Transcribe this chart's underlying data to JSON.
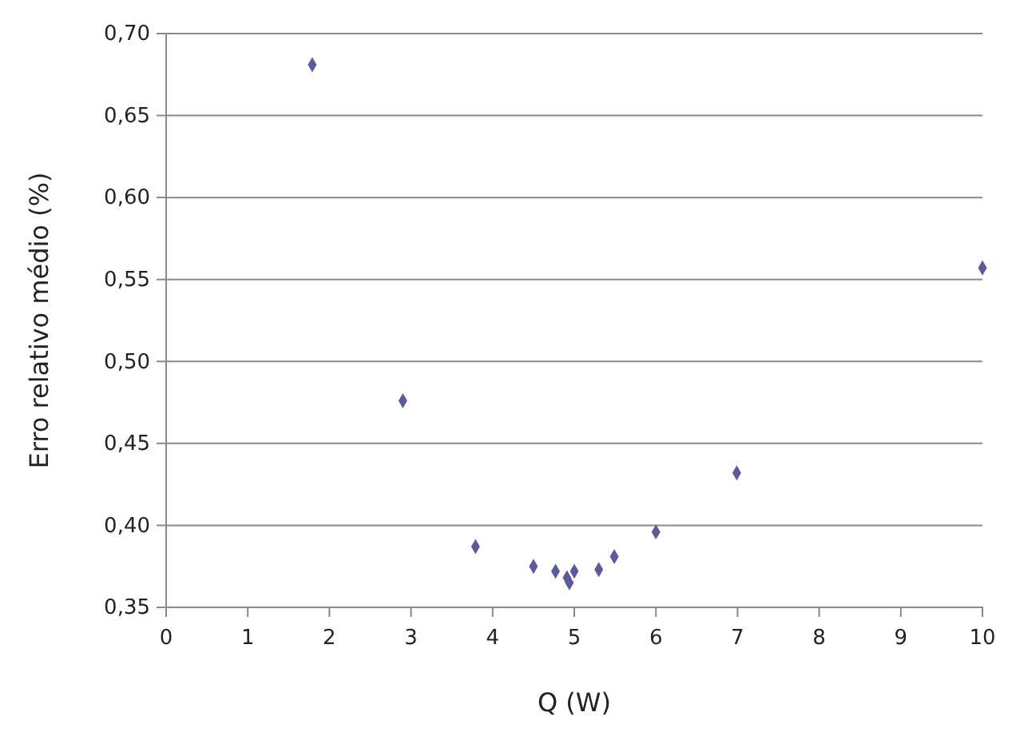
{
  "chart_data": {
    "type": "scatter",
    "xlabel": "Q (W)",
    "ylabel": "Erro relativo médio (%)",
    "x": [
      1.79,
      2.9,
      3.79,
      4.5,
      4.77,
      4.91,
      4.94,
      5.0,
      5.3,
      5.49,
      6.0,
      6.99,
      10.0
    ],
    "series": [
      {
        "color": "#5a5a9c",
        "values": [
          0.681,
          0.476,
          0.387,
          0.375,
          0.372,
          0.368,
          0.365,
          0.372,
          0.373,
          0.381,
          0.396,
          0.432,
          0.557
        ]
      }
    ],
    "xlim": [
      0,
      10
    ],
    "xticks": [
      0,
      1,
      2,
      3,
      4,
      5,
      6,
      7,
      8,
      9,
      10
    ],
    "ylim": [
      0.35,
      0.7
    ],
    "yticks": [
      {
        "value": 0.35,
        "label": "0,35"
      },
      {
        "value": 0.4,
        "label": "0,40"
      },
      {
        "value": 0.45,
        "label": "0,45"
      },
      {
        "value": 0.5,
        "label": "0,50"
      },
      {
        "value": 0.55,
        "label": "0,55"
      },
      {
        "value": 0.6,
        "label": "0,60"
      },
      {
        "value": 0.65,
        "label": "0,65"
      },
      {
        "value": 0.7,
        "label": "0,70"
      }
    ],
    "grid": "y",
    "marker": "diamond"
  }
}
